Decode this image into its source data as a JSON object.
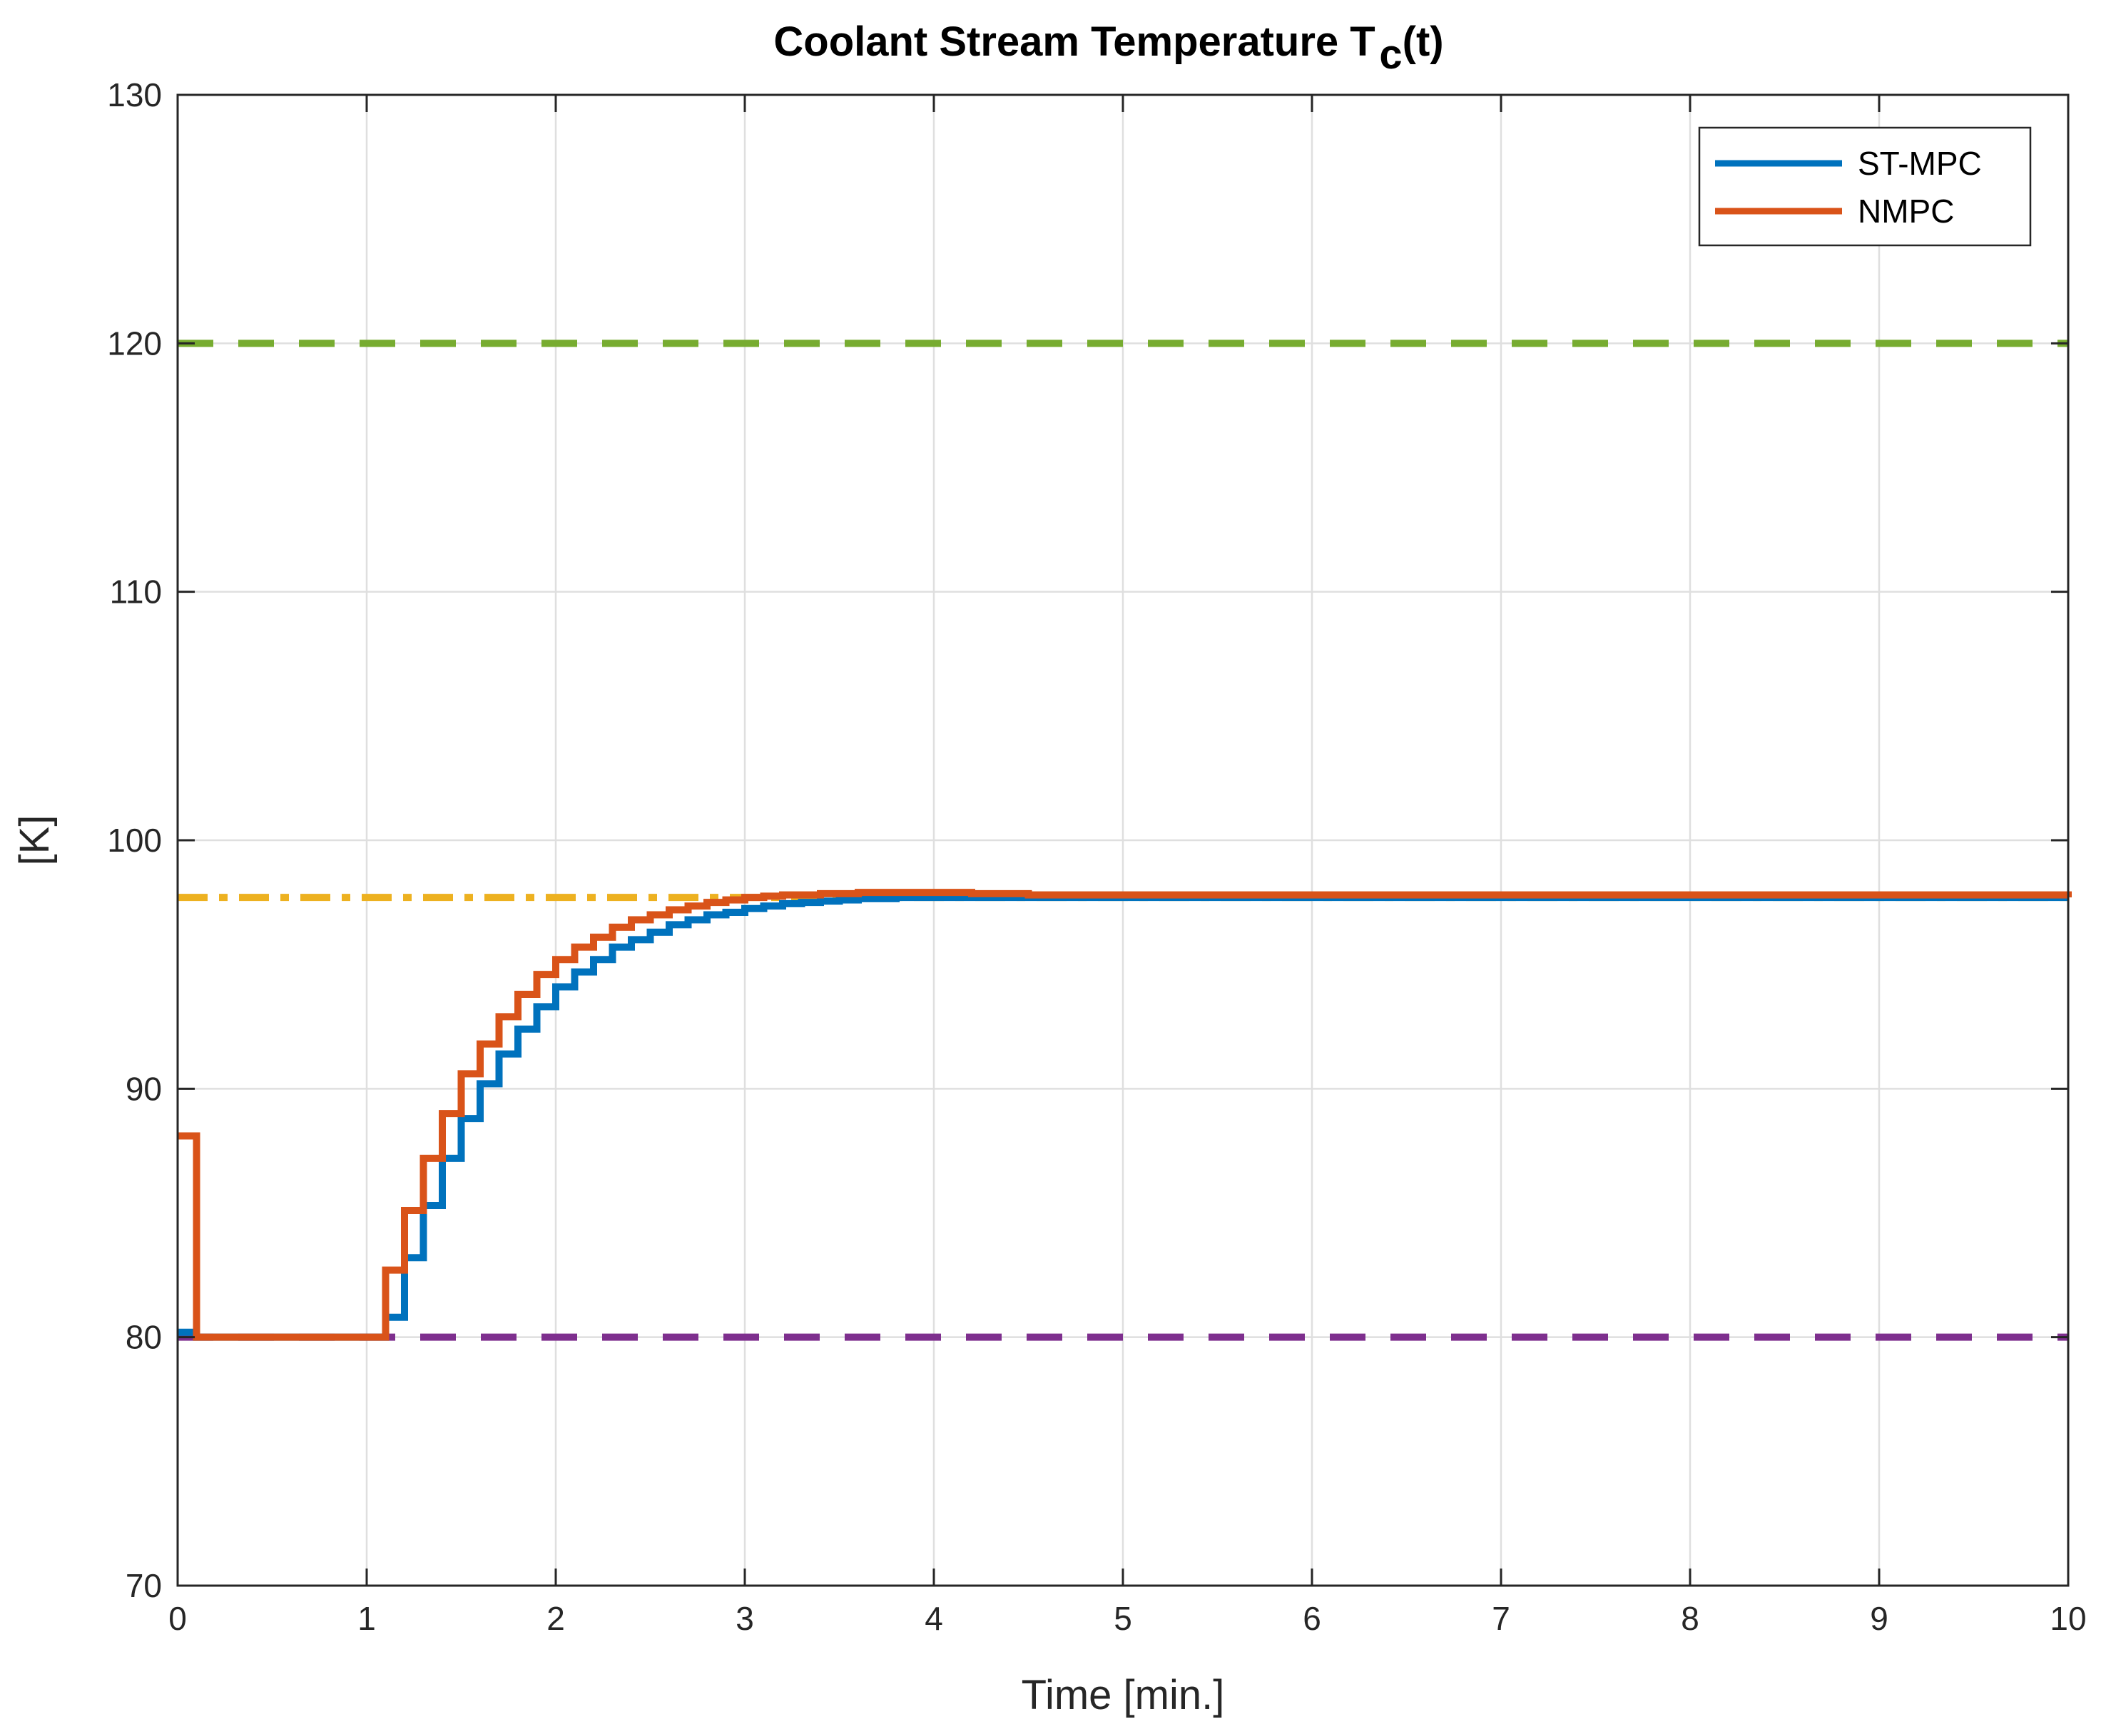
{
  "chart_data": {
    "type": "line",
    "title": {
      "main": "Coolant Stream Temperature T",
      "subscript": "c",
      "suffix": "(t)"
    },
    "xlabel": "Time [min.]",
    "ylabel": "[K]",
    "xlim": [
      0,
      10
    ],
    "ylim": [
      70,
      130
    ],
    "xticks": [
      0,
      1,
      2,
      3,
      4,
      5,
      6,
      7,
      8,
      9,
      10
    ],
    "yticks": [
      70,
      80,
      90,
      100,
      110,
      120,
      130
    ],
    "grid": true,
    "legend_position": "top-right",
    "step_plot": true,
    "series": [
      {
        "name": "ST-MPC",
        "color": "#0072BD",
        "x": [
          0,
          0.1,
          1.1,
          1.2,
          1.3,
          1.4,
          1.5,
          1.6,
          1.7,
          1.8,
          1.9,
          2.0,
          2.1,
          2.2,
          2.3,
          2.4,
          2.5,
          2.6,
          2.7,
          2.8,
          2.9,
          3.0,
          3.1,
          3.2,
          3.3,
          3.4,
          3.5,
          3.6,
          3.8,
          4.0,
          4.3,
          10
        ],
        "y": [
          80.2,
          80,
          80.8,
          83.2,
          85.3,
          87.2,
          88.8,
          90.2,
          91.4,
          92.4,
          93.3,
          94.1,
          94.7,
          95.2,
          95.7,
          96.0,
          96.3,
          96.6,
          96.8,
          97.0,
          97.1,
          97.25,
          97.35,
          97.45,
          97.5,
          97.55,
          97.6,
          97.65,
          97.7,
          97.7,
          97.7,
          97.7
        ]
      },
      {
        "name": "NMPC",
        "color": "#D95319",
        "x": [
          0,
          0.1,
          1.1,
          1.2,
          1.3,
          1.4,
          1.5,
          1.6,
          1.7,
          1.8,
          1.9,
          2.0,
          2.1,
          2.2,
          2.3,
          2.4,
          2.5,
          2.6,
          2.7,
          2.8,
          2.9,
          3.0,
          3.1,
          3.2,
          3.4,
          3.6,
          3.8,
          4.0,
          4.2,
          4.5,
          10
        ],
        "y": [
          88.1,
          80,
          82.7,
          85.1,
          87.2,
          89.0,
          90.6,
          91.8,
          92.9,
          93.8,
          94.6,
          95.2,
          95.7,
          96.1,
          96.5,
          96.8,
          97.0,
          97.2,
          97.35,
          97.5,
          97.6,
          97.7,
          97.75,
          97.8,
          97.85,
          97.9,
          97.9,
          97.9,
          97.85,
          97.8,
          97.7
        ]
      }
    ],
    "reference_lines": [
      {
        "label": "upper-bound",
        "y": 120,
        "color": "#77AC30",
        "style": "dashed"
      },
      {
        "label": "setpoint",
        "y": 97.7,
        "color": "#EDB120",
        "style": "dash-dot"
      },
      {
        "label": "lower-bound",
        "y": 80,
        "color": "#7E2F8E",
        "style": "dashed"
      }
    ]
  }
}
